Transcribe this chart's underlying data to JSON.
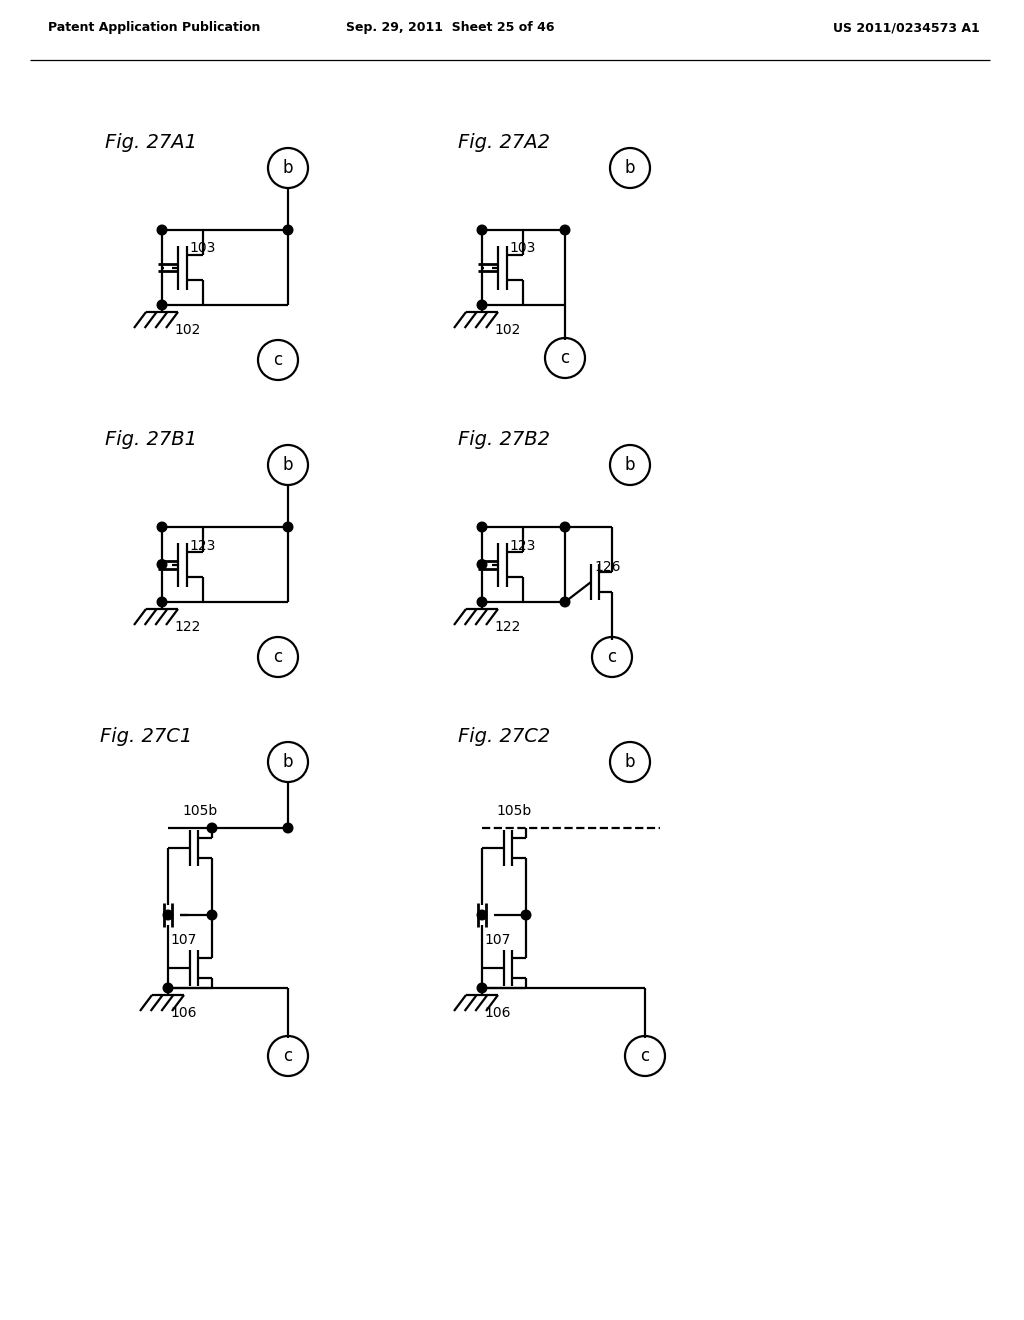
{
  "bg": "#ffffff",
  "header_left": "Patent Application Publication",
  "header_mid": "Sep. 29, 2011  Sheet 25 of 46",
  "header_right": "US 2011/0234573 A1",
  "lw": 1.6
}
